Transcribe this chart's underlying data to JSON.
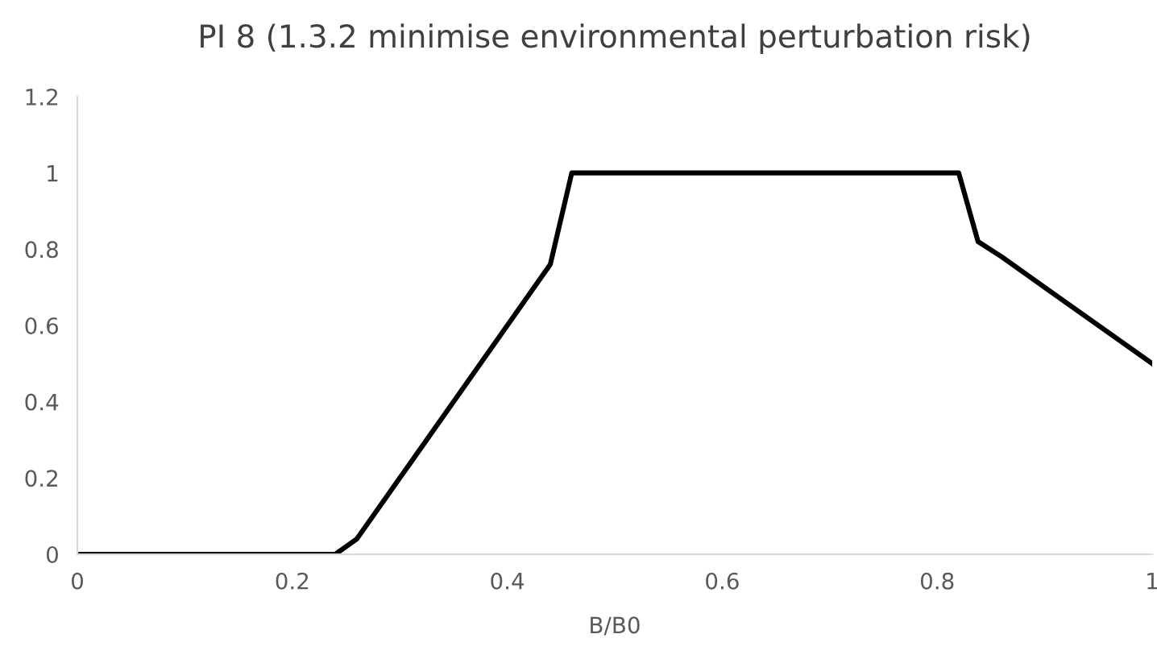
{
  "chart_data": {
    "type": "line",
    "title": "PI 8 (1.3.2 minimise environmental perturbation risk)",
    "xlabel": "B/B0",
    "x": [
      0,
      0.24,
      0.26,
      0.3,
      0.36,
      0.4,
      0.44,
      0.46,
      0.82,
      0.838,
      0.86,
      0.88,
      0.9,
      1
    ],
    "series": [
      {
        "color": "#000000",
        "values": [
          0,
          0,
          0.04,
          0.2,
          0.44,
          0.6,
          0.76,
          1,
          1,
          0.82,
          0.78,
          0.74,
          0.7,
          0.5
        ]
      }
    ],
    "xlim": [
      0,
      1
    ],
    "xticks": [
      0,
      0.2,
      0.4,
      0.6,
      0.8,
      1
    ],
    "ylim": [
      0,
      1.2
    ],
    "yticks": [
      0,
      0.2,
      0.4,
      0.6,
      0.8,
      1,
      1.2
    ],
    "grid": false,
    "marker": "none",
    "line_style": "solid"
  }
}
